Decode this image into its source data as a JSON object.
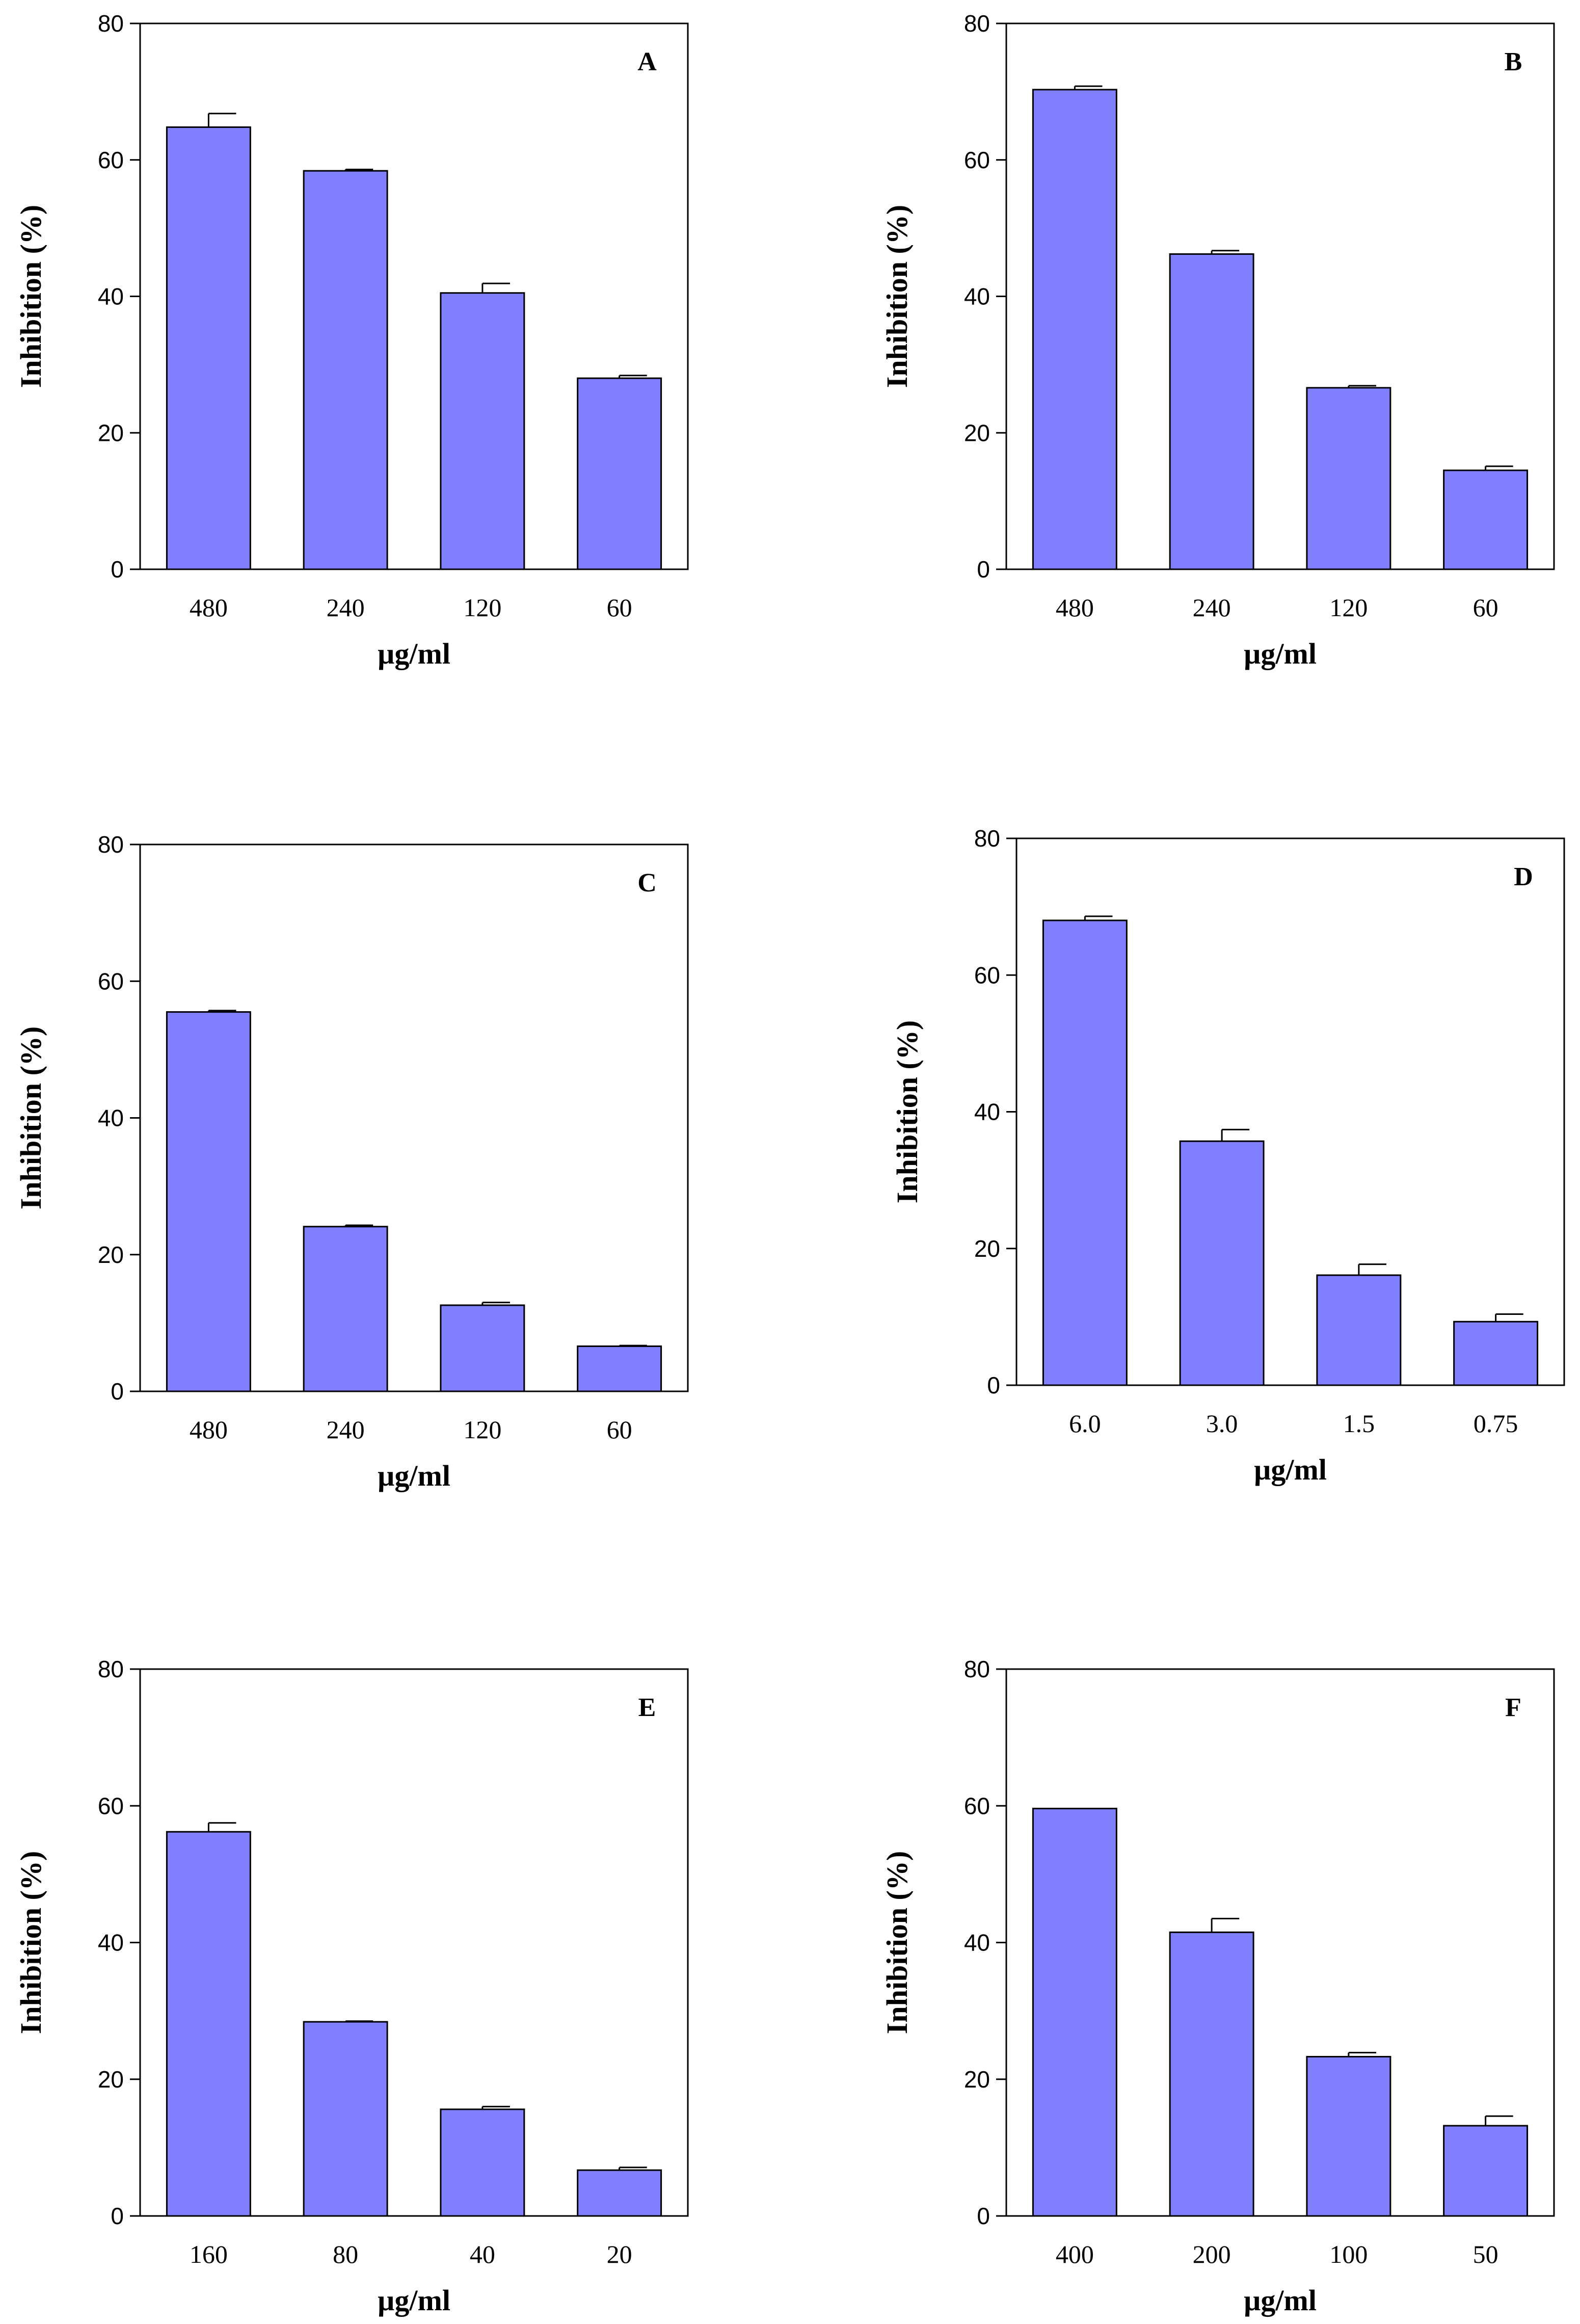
{
  "colors": {
    "bar_fill": "#8080ff",
    "bar_stroke": "#000000",
    "axis": "#000000",
    "background": "#ffffff"
  },
  "chart_data": [
    {
      "panel": "A",
      "type": "bar",
      "categories": [
        "480",
        "240",
        "120",
        "60"
      ],
      "values": [
        64.8,
        58.4,
        40.5,
        28.0
      ],
      "errors": [
        2.0,
        0.2,
        1.4,
        0.4
      ],
      "xlabel": "µg/ml",
      "ylabel": "Inhibition (%)",
      "ylim": [
        0,
        80
      ],
      "yticks": [
        0,
        20,
        40,
        60,
        80
      ]
    },
    {
      "panel": "B",
      "type": "bar",
      "categories": [
        "480",
        "240",
        "120",
        "60"
      ],
      "values": [
        70.3,
        46.2,
        26.6,
        14.5
      ],
      "errors": [
        0.5,
        0.5,
        0.3,
        0.6
      ],
      "xlabel": "µg/ml",
      "ylabel": "Inhibition (%)",
      "ylim": [
        0,
        80
      ],
      "yticks": [
        0,
        20,
        40,
        60,
        80
      ]
    },
    {
      "panel": "C",
      "type": "bar",
      "categories": [
        "480",
        "240",
        "120",
        "60"
      ],
      "values": [
        55.5,
        24.1,
        12.6,
        6.6
      ],
      "errors": [
        0.2,
        0.2,
        0.4,
        0.1
      ],
      "xlabel": "µg/ml",
      "ylabel": "Inhibition (%)",
      "ylim": [
        0,
        80
      ],
      "yticks": [
        0,
        20,
        40,
        60,
        80
      ]
    },
    {
      "panel": "D",
      "type": "bar",
      "categories": [
        "6.0",
        "3.0",
        "1.5",
        "0.75"
      ],
      "values": [
        68.0,
        35.7,
        16.1,
        9.3
      ],
      "errors": [
        0.6,
        1.7,
        1.6,
        1.1
      ],
      "xlabel": "µg/ml",
      "ylabel": "Inhibition (%)",
      "ylim": [
        0,
        80
      ],
      "yticks": [
        0,
        20,
        40,
        60,
        80
      ]
    },
    {
      "panel": "E",
      "type": "bar",
      "categories": [
        "160",
        "80",
        "40",
        "20"
      ],
      "values": [
        56.2,
        28.4,
        15.6,
        6.7
      ],
      "errors": [
        1.3,
        0.1,
        0.4,
        0.4
      ],
      "xlabel": "µg/ml",
      "ylabel": "Inhibition (%)",
      "ylim": [
        0,
        80
      ],
      "yticks": [
        0,
        20,
        40,
        60,
        80
      ]
    },
    {
      "panel": "F",
      "type": "bar",
      "categories": [
        "400",
        "200",
        "100",
        "50"
      ],
      "values": [
        59.6,
        41.5,
        23.3,
        13.2
      ],
      "errors": [
        0.0,
        2.0,
        0.6,
        1.4
      ],
      "xlabel": "µg/ml",
      "ylabel": "Inhibition (%)",
      "ylim": [
        0,
        80
      ],
      "yticks": [
        0,
        20,
        40,
        60,
        80
      ]
    }
  ]
}
